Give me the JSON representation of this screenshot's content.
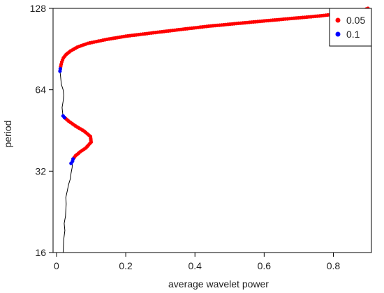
{
  "chart_data": {
    "type": "line",
    "title": "",
    "xlabel": "average wavelet power",
    "ylabel": "period",
    "xlim": [
      -0.01,
      0.91
    ],
    "ylim": [
      16,
      128
    ],
    "y_scale": "log2",
    "x_ticks": [
      "0",
      "0.2",
      "0.4",
      "0.6",
      "0.8"
    ],
    "x_tick_values": [
      0,
      0.2,
      0.4,
      0.6,
      0.8
    ],
    "y_ticks": [
      "16",
      "32",
      "64",
      "128"
    ],
    "y_tick_values": [
      16,
      32,
      64,
      128
    ],
    "grid": false,
    "legend_position": "top-right",
    "legend": [
      {
        "label": "0.05",
        "color": "#ff0000"
      },
      {
        "label": "0.1",
        "color": "#0000ff"
      }
    ],
    "series": [
      {
        "style": "thin black line",
        "color": "#000000",
        "points": [
          [
            0.019,
            16.0
          ],
          [
            0.02,
            17.0
          ],
          [
            0.021,
            18.0
          ],
          [
            0.024,
            19.3
          ],
          [
            0.022,
            20.5
          ],
          [
            0.026,
            21.8
          ],
          [
            0.027,
            23.0
          ],
          [
            0.028,
            24.2
          ],
          [
            0.027,
            25.6
          ],
          [
            0.031,
            27.0
          ],
          [
            0.035,
            28.6
          ],
          [
            0.04,
            30.0
          ],
          [
            0.042,
            31.5
          ],
          [
            0.045,
            33.0
          ],
          [
            0.046,
            34.5
          ],
          [
            0.048,
            35.5
          ],
          [
            0.055,
            36.5
          ],
          [
            0.068,
            37.7
          ],
          [
            0.085,
            39.0
          ],
          [
            0.1,
            41.0
          ],
          [
            0.098,
            43.0
          ],
          [
            0.08,
            45.0
          ],
          [
            0.055,
            47.0
          ],
          [
            0.035,
            49.0
          ],
          [
            0.023,
            50.5
          ],
          [
            0.018,
            52.0
          ],
          [
            0.016,
            55.0
          ],
          [
            0.019,
            58.0
          ],
          [
            0.021,
            61.0
          ],
          [
            0.019,
            64.0
          ],
          [
            0.014,
            67.0
          ],
          [
            0.012,
            71.0
          ],
          [
            0.01,
            75.0
          ],
          [
            0.012,
            78.0
          ],
          [
            0.015,
            81.0
          ],
          [
            0.02,
            84.0
          ],
          [
            0.028,
            86.5
          ],
          [
            0.04,
            89.0
          ],
          [
            0.06,
            92.0
          ],
          [
            0.09,
            95.0
          ],
          [
            0.14,
            98.0
          ],
          [
            0.2,
            101.0
          ],
          [
            0.28,
            104.0
          ],
          [
            0.36,
            107.0
          ],
          [
            0.44,
            110.0
          ],
          [
            0.52,
            112.5
          ],
          [
            0.6,
            115.0
          ],
          [
            0.68,
            117.5
          ],
          [
            0.76,
            120.0
          ],
          [
            0.83,
            123.0
          ],
          [
            0.87,
            125.0
          ],
          [
            0.89,
            126.5
          ],
          [
            0.9,
            128.0
          ]
        ]
      },
      {
        "name": "0.05",
        "style": "significance 0.05",
        "color": "#ff0000",
        "segments": [
          [
            [
              0.048,
              35.5
            ],
            [
              0.055,
              36.5
            ],
            [
              0.068,
              37.7
            ],
            [
              0.085,
              39.0
            ],
            [
              0.1,
              41.0
            ],
            [
              0.098,
              43.0
            ],
            [
              0.08,
              45.0
            ],
            [
              0.055,
              47.0
            ],
            [
              0.035,
              49.0
            ],
            [
              0.023,
              50.5
            ]
          ],
          [
            [
              0.012,
              78.0
            ],
            [
              0.015,
              81.0
            ],
            [
              0.02,
              84.0
            ],
            [
              0.028,
              86.5
            ],
            [
              0.04,
              89.0
            ],
            [
              0.06,
              92.0
            ],
            [
              0.09,
              95.0
            ],
            [
              0.14,
              98.0
            ],
            [
              0.2,
              101.0
            ],
            [
              0.28,
              104.0
            ],
            [
              0.36,
              107.0
            ],
            [
              0.44,
              110.0
            ],
            [
              0.52,
              112.5
            ],
            [
              0.6,
              115.0
            ],
            [
              0.68,
              117.5
            ],
            [
              0.76,
              120.0
            ],
            [
              0.83,
              123.0
            ],
            [
              0.87,
              125.0
            ],
            [
              0.89,
              126.5
            ],
            [
              0.9,
              128.0
            ]
          ]
        ]
      },
      {
        "name": "0.1",
        "style": "significance 0.1",
        "color": "#0000ff",
        "segments": [
          [
            [
              0.042,
              34.2
            ],
            [
              0.046,
              34.8
            ],
            [
              0.048,
              35.5
            ]
          ],
          [
            [
              0.023,
              50.5
            ],
            [
              0.019,
              51.2
            ]
          ],
          [
            [
              0.01,
              75.0
            ],
            [
              0.011,
              76.5
            ]
          ]
        ]
      }
    ]
  }
}
